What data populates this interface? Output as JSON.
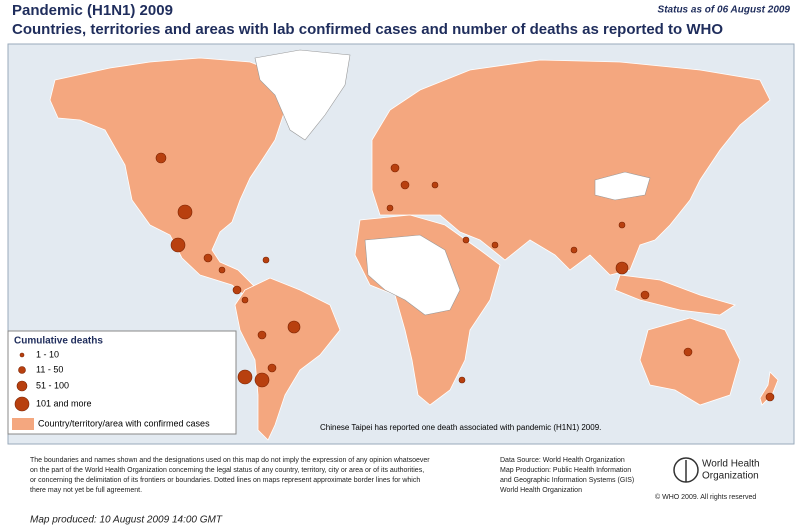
{
  "header": {
    "title": "Pandemic (H1N1) 2009",
    "subtitle": "Countries, territories and areas with lab confirmed cases and number of deaths as reported to WHO",
    "status": "Status as of 06 August 2009"
  },
  "legend": {
    "title": "Cumulative deaths",
    "items": [
      "1 - 10",
      "11 - 50",
      "51 - 100",
      "101 and more"
    ],
    "area": "Country/territory/area with confirmed cases"
  },
  "note": "Chinese Taipei has reported one death associated with pandemic (H1N1) 2009.",
  "disclaimer": [
    "The boundaries and names shown and the designations used on this map do not imply the expression of any opinion whatsoever",
    "on the part of the World Health Organization concerning the legal status of any country, territory, city or area or of its authorities,",
    "or concerning the delimitation of its frontiers or boundaries.  Dotted lines on maps represent approximate border lines for which",
    "there may not yet be full agreement."
  ],
  "source": [
    "Data Source: World Health Organization",
    "Map Production: Public Health Information",
    "and Geographic Information Systems (GIS)",
    "World Health Organization"
  ],
  "logo": [
    "World Health",
    "Organization"
  ],
  "copyright": "© WHO 2009. All rights reserved",
  "produced": "Map produced: 10 August 2009 14:00 GMT"
}
